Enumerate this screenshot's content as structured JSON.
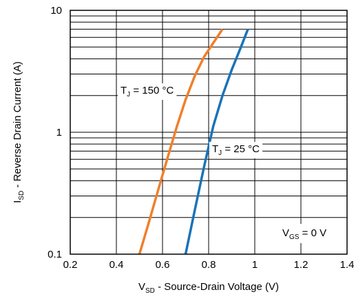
{
  "chart_data": {
    "type": "line",
    "title": "",
    "xlabel": "V_SD - Source-Drain Voltage (V)",
    "xlabel_main": "V",
    "xlabel_sub": "SD",
    "xlabel_rest": " - Source-Drain Voltage (V)",
    "ylabel": "I_SD - Reverse Drain Current (A)",
    "ylabel_main": "I",
    "ylabel_sub": "SD",
    "ylabel_rest": " - Reverse Drain Current (A)",
    "xlim": [
      0.2,
      1.4
    ],
    "ylim": [
      0.1,
      10
    ],
    "yscale": "log",
    "grid": true,
    "x_ticks": [
      "0.2",
      "0.4",
      "0.6",
      "0.8",
      "1",
      "1.2",
      "1.4"
    ],
    "y_ticks": [
      "0.1",
      "1",
      "10"
    ],
    "series": [
      {
        "name": "T_J = 150 °C",
        "label_main": "T",
        "label_sub": "J",
        "label_rest": " = 150 °C",
        "color": "#f07f2b",
        "x": [
          0.5,
          0.54,
          0.58,
          0.62,
          0.66,
          0.7,
          0.74,
          0.78,
          0.82,
          0.86
        ],
        "y": [
          0.1,
          0.18,
          0.33,
          0.6,
          1.08,
          1.85,
          2.9,
          4.15,
          5.4,
          7.0
        ]
      },
      {
        "name": "T_J = 25 °C",
        "label_main": "T",
        "label_sub": "J",
        "label_rest": " = 25 °C",
        "color": "#1a73b8",
        "x": [
          0.7,
          0.74,
          0.78,
          0.82,
          0.86,
          0.9,
          0.94,
          0.97
        ],
        "y": [
          0.1,
          0.23,
          0.52,
          1.12,
          2.0,
          3.25,
          5.0,
          7.0
        ]
      }
    ],
    "annotation": {
      "text": "V_GS = 0 V",
      "main": "V",
      "sub": "GS",
      "rest": " = 0 V"
    }
  }
}
